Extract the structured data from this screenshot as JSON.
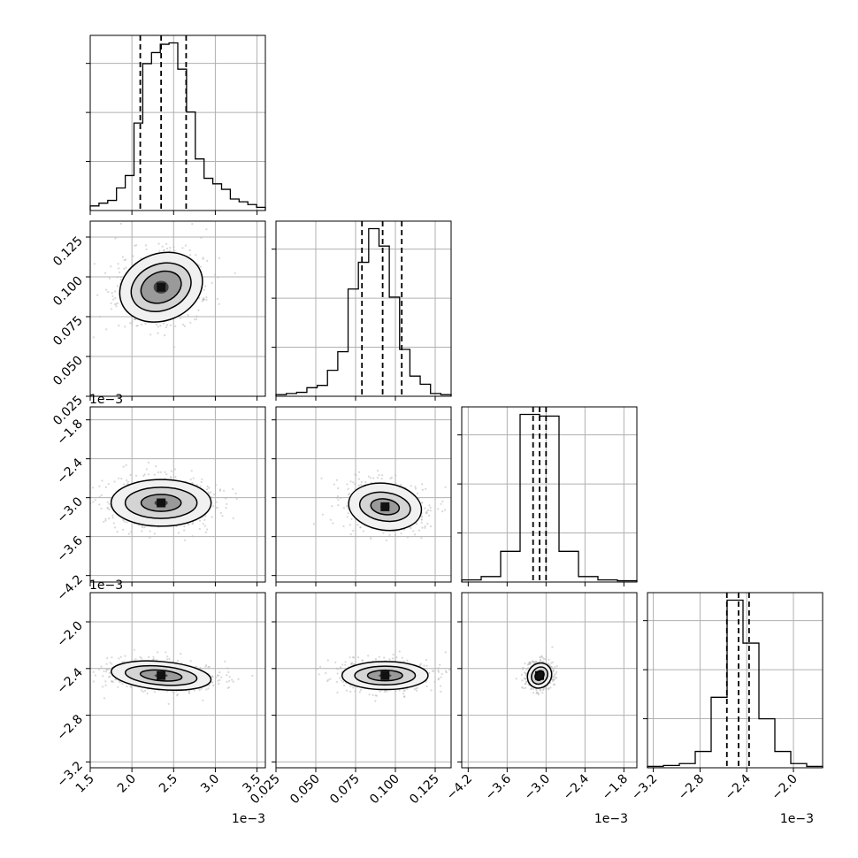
{
  "chart_data": {
    "type": "corner",
    "grid": true,
    "parameters": [
      {
        "range": [
          1.5,
          3.6
        ],
        "ticks": [
          1.5,
          2.0,
          2.5,
          3.0,
          3.5
        ],
        "tick_labels": [
          "1.5",
          "2.0",
          "2.5",
          "3.0",
          "3.5"
        ],
        "offset_label": "1e−3",
        "mean": 2.35,
        "sd": 0.3,
        "quantiles": [
          2.1,
          2.35,
          2.65
        ]
      },
      {
        "range": [
          0.025,
          0.135
        ],
        "ticks": [
          0.025,
          0.05,
          0.075,
          0.1,
          0.125
        ],
        "tick_labels": [
          "0.025",
          "0.050",
          "0.075",
          "0.100",
          "0.125"
        ],
        "offset_label": "",
        "mean": 0.0915,
        "sd": 0.013,
        "quantiles": [
          0.079,
          0.092,
          0.104
        ]
      },
      {
        "range": [
          -4.3,
          -1.6
        ],
        "ticks": [
          -4.2,
          -3.6,
          -3.0,
          -2.4,
          -1.8
        ],
        "tick_labels": [
          "−4.2",
          "−3.6",
          "−3.0",
          "−2.4",
          "−1.8"
        ],
        "offset_label": "1e−3",
        "mean": -3.1,
        "sd": 0.1,
        "quantiles": [
          -3.2,
          -3.1,
          -3.0
        ]
      },
      {
        "range": [
          -3.25,
          -1.75
        ],
        "ticks": [
          -3.2,
          -2.8,
          -2.4,
          -2.0
        ],
        "tick_labels": [
          "−3.2",
          "−2.8",
          "−2.4",
          "−2.0"
        ],
        "offset_label": "1e−3",
        "mean": -2.47,
        "sd": 0.08,
        "quantiles": [
          -2.57,
          -2.47,
          -2.38
        ]
      }
    ],
    "histograms": [
      [
        3,
        5,
        7,
        16,
        25,
        63,
        106,
        114,
        120,
        121,
        102,
        71,
        37,
        23,
        19,
        15,
        8,
        6,
        4,
        2
      ],
      [
        1,
        2,
        3,
        7,
        9,
        22,
        38,
        92,
        115,
        144,
        129,
        85,
        40,
        17,
        10,
        2,
        1
      ],
      [
        2,
        6,
        36,
        199,
        197,
        36,
        6,
        2,
        1
      ],
      [
        1,
        2,
        4,
        17,
        75,
        179,
        133,
        52,
        17,
        4,
        1
      ]
    ],
    "contours": [
      {
        "row": 1,
        "col": 0,
        "center": [
          2.35,
          0.0935
        ],
        "levels": [
          {
            "rx": 0.51,
            "ry": 0.021,
            "rot": -22
          },
          {
            "rx": 0.37,
            "ry": 0.0145,
            "rot": -22
          },
          {
            "rx": 0.25,
            "ry": 0.0095,
            "rot": -22
          },
          {
            "rx": 0.09,
            "ry": 0.004,
            "rot": 0
          }
        ]
      },
      {
        "row": 2,
        "col": 0,
        "center": [
          2.35,
          -3.08
        ],
        "levels": [
          {
            "rx": 0.6,
            "ry": 0.36,
            "rot": 0
          },
          {
            "rx": 0.43,
            "ry": 0.24,
            "rot": 0
          },
          {
            "rx": 0.24,
            "ry": 0.13,
            "rot": 0
          },
          {
            "rx": 0.08,
            "ry": 0.05,
            "rot": 0
          }
        ]
      },
      {
        "row": 2,
        "col": 1,
        "center": [
          0.0935,
          -3.14
        ],
        "levels": [
          {
            "rx": 0.023,
            "ry": 0.36,
            "rot": 8
          },
          {
            "rx": 0.016,
            "ry": 0.22,
            "rot": 8
          },
          {
            "rx": 0.009,
            "ry": 0.12,
            "rot": 8
          },
          {
            "rx": 0.003,
            "ry": 0.05,
            "rot": 0
          }
        ]
      },
      {
        "row": 3,
        "col": 0,
        "center": [
          2.35,
          -2.46
        ],
        "levels": [
          {
            "rx": 0.6,
            "ry": 0.12,
            "rot": 5
          },
          {
            "rx": 0.43,
            "ry": 0.08,
            "rot": 5
          },
          {
            "rx": 0.25,
            "ry": 0.045,
            "rot": 5
          },
          {
            "rx": 0.08,
            "ry": 0.015,
            "rot": 0
          }
        ]
      },
      {
        "row": 3,
        "col": 1,
        "center": [
          0.0935,
          -2.46
        ],
        "levels": [
          {
            "rx": 0.027,
            "ry": 0.12,
            "rot": 0
          },
          {
            "rx": 0.019,
            "ry": 0.08,
            "rot": 0
          },
          {
            "rx": 0.011,
            "ry": 0.045,
            "rot": 0
          },
          {
            "rx": 0.004,
            "ry": 0.015,
            "rot": 0
          }
        ]
      },
      {
        "row": 3,
        "col": 2,
        "center": [
          -3.1,
          -2.46
        ],
        "levels": [
          {
            "rx": 0.2,
            "ry": 0.1,
            "rot": -55
          },
          {
            "rx": 0.14,
            "ry": 0.065,
            "rot": -55
          },
          {
            "rx": 0.08,
            "ry": 0.035,
            "rot": -55
          },
          {
            "rx": 0.03,
            "ry": 0.012,
            "rot": 0
          }
        ]
      }
    ],
    "panel_offset_labels": [
      {
        "row": 1,
        "label": "1e−3"
      },
      {
        "row": 2,
        "label": "1e−3"
      }
    ]
  }
}
